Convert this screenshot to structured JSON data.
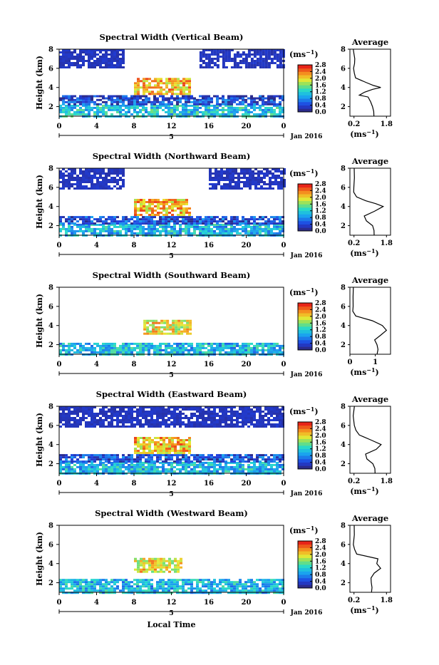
{
  "figure": {
    "xlabel": "Local Time",
    "date_label": "Jan 2016",
    "day_label": "5",
    "ylabel": "Height (km)",
    "unit_label": "(ms",
    "unit_exp": "−1",
    "unit_close": ")",
    "avg_title": "Average"
  },
  "chart_data": [
    {
      "type": "heatmap",
      "title": "Spectral Width (Vertical Beam)",
      "xlabel": "Local Time",
      "ylabel": "Height (km)",
      "x_ticks": [
        "0",
        "4",
        "8",
        "12",
        "16",
        "20",
        "0"
      ],
      "y_ticks": [
        "2",
        "4",
        "6",
        "8"
      ],
      "xlim": [
        0,
        24
      ],
      "ylim": [
        1,
        8
      ],
      "colorbar": {
        "label": "(ms⁻¹)",
        "ticks": [
          "0.0",
          "0.4",
          "0.8",
          "1.2",
          "1.6",
          "2.0",
          "2.4",
          "2.8"
        ],
        "range": [
          0,
          2.8
        ]
      },
      "regions": [
        {
          "x": [
            0,
            24
          ],
          "y": [
            1.0,
            2.2
          ],
          "value": 1.1
        },
        {
          "x": [
            0,
            24
          ],
          "y": [
            2.2,
            2.8
          ],
          "value": 0.4
        },
        {
          "x": [
            0,
            24
          ],
          "y": [
            2.8,
            3.2
          ],
          "value": 0.2
        },
        {
          "x": [
            8,
            14
          ],
          "y": [
            3.2,
            5.0
          ],
          "value": 2.2
        },
        {
          "x": [
            0,
            7
          ],
          "y": [
            6.0,
            8.0
          ],
          "value": 0.1
        },
        {
          "x": [
            15,
            24
          ],
          "y": [
            6.0,
            8.0
          ],
          "value": 0.1
        }
      ],
      "average": {
        "xlabel": "(ms⁻¹)",
        "x_ticks": [
          "0.2",
          "1.8"
        ],
        "xlim": [
          0,
          2.0
        ],
        "y_ticks": [
          "2",
          "4",
          "6",
          "8"
        ],
        "ylim": [
          1,
          8
        ],
        "heights": [
          1.0,
          1.5,
          2.0,
          2.5,
          3.0,
          3.2,
          3.5,
          3.8,
          4.0,
          4.2,
          4.5,
          5.0,
          5.5,
          6.0,
          6.5,
          7.0,
          7.5,
          8.0
        ],
        "values": [
          1.15,
          1.15,
          1.1,
          1.05,
          0.9,
          0.5,
          0.7,
          1.1,
          1.5,
          1.2,
          0.8,
          0.3,
          0.2,
          0.2,
          0.2,
          0.2,
          0.2,
          0.2
        ]
      }
    },
    {
      "type": "heatmap",
      "title": "Spectral Width (Northward Beam)",
      "xlabel": "Local Time",
      "ylabel": "Height (km)",
      "x_ticks": [
        "0",
        "4",
        "8",
        "12",
        "16",
        "20",
        "0"
      ],
      "y_ticks": [
        "2",
        "4",
        "6",
        "8"
      ],
      "xlim": [
        0,
        24
      ],
      "ylim": [
        1,
        8
      ],
      "colorbar": {
        "label": "(ms⁻¹)",
        "ticks": [
          "0.0",
          "0.4",
          "0.8",
          "1.2",
          "1.6",
          "2.0",
          "2.4",
          "2.8"
        ],
        "range": [
          0,
          2.8
        ]
      },
      "regions": [
        {
          "x": [
            0,
            24
          ],
          "y": [
            1.0,
            2.2
          ],
          "value": 1.0
        },
        {
          "x": [
            0,
            24
          ],
          "y": [
            2.2,
            3.0
          ],
          "value": 0.4
        },
        {
          "x": [
            8,
            14
          ],
          "y": [
            3.0,
            4.8
          ],
          "value": 2.2
        },
        {
          "x": [
            0,
            7
          ],
          "y": [
            5.8,
            8.0
          ],
          "value": 0.1
        },
        {
          "x": [
            16,
            24
          ],
          "y": [
            5.8,
            8.0
          ],
          "value": 0.1
        }
      ],
      "average": {
        "xlabel": "(ms⁻¹)",
        "x_ticks": [
          "0.2",
          "1.8"
        ],
        "xlim": [
          0,
          2.0
        ],
        "y_ticks": [
          "2",
          "4",
          "6",
          "8"
        ],
        "ylim": [
          1,
          8
        ],
        "heights": [
          1.0,
          1.5,
          2.0,
          2.5,
          3.0,
          3.5,
          4.0,
          4.3,
          4.6,
          5.0,
          5.5,
          6.0,
          7.0,
          8.0
        ],
        "values": [
          1.2,
          1.2,
          1.15,
          0.8,
          0.7,
          1.2,
          1.6,
          1.3,
          0.8,
          0.3,
          0.2,
          0.2,
          0.2,
          0.2
        ]
      }
    },
    {
      "type": "heatmap",
      "title": "Spectral Width (Southward Beam)",
      "xlabel": "Local Time",
      "ylabel": "Height (km)",
      "x_ticks": [
        "0",
        "4",
        "8",
        "12",
        "16",
        "20",
        "0"
      ],
      "y_ticks": [
        "2",
        "4",
        "6",
        "8"
      ],
      "xlim": [
        0,
        24
      ],
      "ylim": [
        1,
        8
      ],
      "colorbar": {
        "label": "(ms⁻¹)",
        "ticks": [
          "0.0",
          "0.4",
          "0.8",
          "1.2",
          "1.6",
          "2.0",
          "2.4",
          "2.8"
        ],
        "range": [
          0,
          2.8
        ]
      },
      "regions": [
        {
          "x": [
            0,
            24
          ],
          "y": [
            1.0,
            2.2
          ],
          "value": 1.0
        },
        {
          "x": [
            9,
            14
          ],
          "y": [
            3.0,
            4.6
          ],
          "value": 2.0
        }
      ],
      "average": {
        "xlabel": "(ms⁻¹)",
        "x_ticks": [
          "0",
          "1"
        ],
        "xlim": [
          0,
          1.6
        ],
        "y_ticks": [
          "2",
          "4",
          "6",
          "8"
        ],
        "ylim": [
          1,
          8
        ],
        "heights": [
          1.0,
          1.5,
          2.0,
          2.5,
          3.0,
          3.5,
          4.0,
          4.5,
          5.0,
          5.5,
          6.0,
          7.0,
          8.0
        ],
        "values": [
          1.1,
          1.1,
          1.05,
          1.0,
          1.2,
          1.4,
          1.3,
          0.9,
          0.2,
          0.1,
          0.1,
          0.1,
          0.1
        ]
      }
    },
    {
      "type": "heatmap",
      "title": "Spectral Width (Eastward Beam)",
      "xlabel": "Local Time",
      "ylabel": "Height (km)",
      "x_ticks": [
        "0",
        "4",
        "8",
        "12",
        "16",
        "20",
        "0"
      ],
      "y_ticks": [
        "2",
        "4",
        "6",
        "8"
      ],
      "xlim": [
        0,
        24
      ],
      "ylim": [
        1,
        8
      ],
      "colorbar": {
        "label": "(ms⁻¹)",
        "ticks": [
          "0.0",
          "0.4",
          "0.8",
          "1.2",
          "1.6",
          "2.0",
          "2.4",
          "2.8"
        ],
        "range": [
          0,
          2.8
        ]
      },
      "regions": [
        {
          "x": [
            0,
            24
          ],
          "y": [
            1.0,
            2.2
          ],
          "value": 1.0
        },
        {
          "x": [
            0,
            24
          ],
          "y": [
            2.2,
            3.0
          ],
          "value": 0.4
        },
        {
          "x": [
            8,
            14
          ],
          "y": [
            3.0,
            4.8
          ],
          "value": 2.2
        },
        {
          "x": [
            0,
            24
          ],
          "y": [
            5.8,
            8.0
          ],
          "value": 0.1
        }
      ],
      "average": {
        "xlabel": "(ms⁻¹)",
        "x_ticks": [
          "0.2",
          "1.8"
        ],
        "xlim": [
          0,
          2.0
        ],
        "y_ticks": [
          "2",
          "4",
          "6",
          "8"
        ],
        "ylim": [
          1,
          8
        ],
        "heights": [
          1.0,
          1.5,
          2.0,
          2.5,
          3.0,
          3.5,
          4.0,
          4.5,
          5.0,
          5.5,
          6.0,
          7.0,
          8.0
        ],
        "values": [
          1.2,
          1.2,
          1.1,
          0.8,
          0.8,
          1.3,
          1.5,
          1.0,
          0.5,
          0.3,
          0.2,
          0.2,
          0.2
        ]
      }
    },
    {
      "type": "heatmap",
      "title": "Spectral Width (Westward Beam)",
      "xlabel": "Local Time",
      "ylabel": "Height (km)",
      "x_ticks": [
        "0",
        "4",
        "8",
        "12",
        "16",
        "20",
        "0"
      ],
      "y_ticks": [
        "2",
        "4",
        "6",
        "8"
      ],
      "xlim": [
        0,
        24
      ],
      "ylim": [
        1,
        8
      ],
      "colorbar": {
        "label": "(ms⁻¹)",
        "ticks": [
          "0.0",
          "0.4",
          "0.8",
          "1.2",
          "1.6",
          "2.0",
          "2.4",
          "2.8"
        ],
        "range": [
          0,
          2.8
        ]
      },
      "regions": [
        {
          "x": [
            0,
            24
          ],
          "y": [
            1.0,
            2.4
          ],
          "value": 1.0
        },
        {
          "x": [
            8,
            13
          ],
          "y": [
            3.0,
            4.6
          ],
          "value": 2.0
        }
      ],
      "average": {
        "xlabel": "(ms⁻¹)",
        "x_ticks": [
          "0.2",
          "1.8"
        ],
        "xlim": [
          0,
          2.0
        ],
        "y_ticks": [
          "2",
          "4",
          "6",
          "8"
        ],
        "ylim": [
          1,
          8
        ],
        "heights": [
          1.0,
          1.5,
          2.0,
          2.5,
          3.0,
          3.5,
          4.0,
          4.5,
          5.0,
          5.5,
          6.0,
          7.0,
          8.0
        ],
        "values": [
          1.1,
          1.1,
          1.05,
          1.0,
          1.2,
          1.5,
          1.3,
          1.4,
          0.3,
          0.2,
          0.2,
          0.2,
          0.2
        ]
      }
    }
  ]
}
